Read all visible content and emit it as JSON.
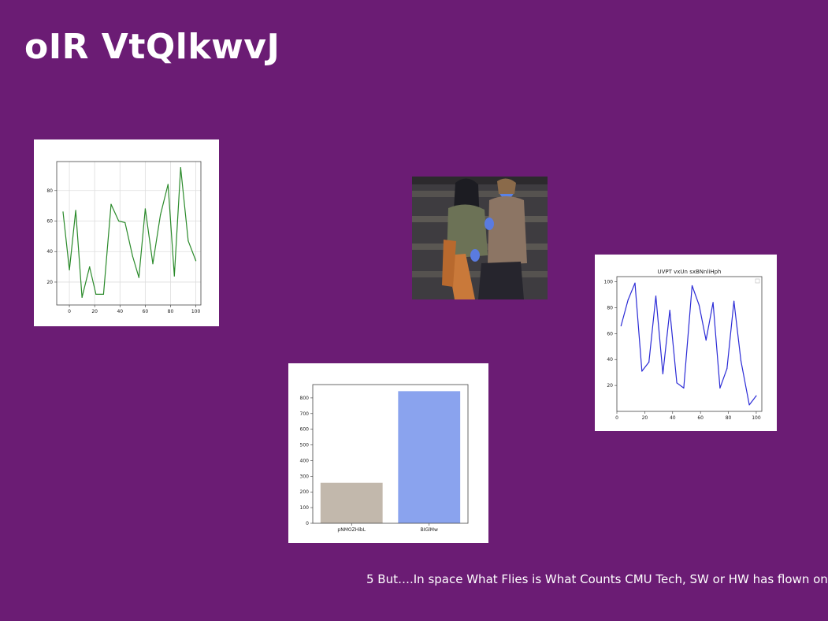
{
  "slide": {
    "title": "oIR VtQlkwvJ",
    "footer": "5 But….In space What Flies is What Counts CMU Tech, SW or HW has flown on",
    "background_color": "#6b1c74"
  },
  "photo": {
    "description_icon": "photo-two-people-on-steps"
  },
  "chart_data": [
    {
      "type": "line",
      "title": "",
      "xlabel": "",
      "ylabel": "",
      "grid": true,
      "color": "#2a8a2a",
      "xlim": [
        -10,
        104
      ],
      "ylim": [
        5,
        99
      ],
      "xticks": [
        "0",
        "20",
        "40",
        "60",
        "80",
        "100"
      ],
      "yticks": [
        "20",
        "40",
        "60",
        "80"
      ],
      "x": [
        -5,
        0,
        5,
        10,
        16,
        21,
        27,
        33,
        39,
        44,
        50,
        55,
        60,
        66,
        72,
        78,
        83,
        88,
        94,
        100
      ],
      "y": [
        66,
        28,
        67,
        10,
        30,
        12,
        12,
        71,
        60,
        59,
        37,
        23,
        68,
        32,
        64,
        84,
        24,
        95,
        47,
        34
      ]
    },
    {
      "type": "line",
      "title": "UVPT vxUn sxBNnliHph",
      "xlabel": "",
      "ylabel": "",
      "grid": false,
      "legend": "top-right",
      "color": "#2b2bd6",
      "xlim": [
        0,
        104
      ],
      "ylim": [
        0,
        104
      ],
      "xticks": [
        "0",
        "20",
        "40",
        "60",
        "80",
        "100"
      ],
      "yticks": [
        "20",
        "40",
        "60",
        "80",
        "100"
      ],
      "x": [
        3,
        8,
        13,
        18,
        23,
        28,
        33,
        38,
        43,
        48,
        54,
        59,
        64,
        69,
        74,
        79,
        84,
        89,
        95,
        100
      ],
      "y": [
        66,
        86,
        99,
        31,
        38,
        89,
        29,
        78,
        22,
        18,
        97,
        82,
        55,
        84,
        18,
        33,
        85,
        39,
        5,
        12
      ]
    },
    {
      "type": "bar",
      "title": "",
      "xlabel": "",
      "ylabel": "",
      "grid": false,
      "categories": [
        "pNMOZHibL",
        "BIGlMw"
      ],
      "values": [
        258,
        843
      ],
      "colors": [
        "#c2b8ac",
        "#8aa3ee"
      ],
      "ylim": [
        0,
        885
      ],
      "yticks": [
        "0",
        "100",
        "200",
        "300",
        "400",
        "500",
        "600",
        "700",
        "800"
      ]
    }
  ]
}
